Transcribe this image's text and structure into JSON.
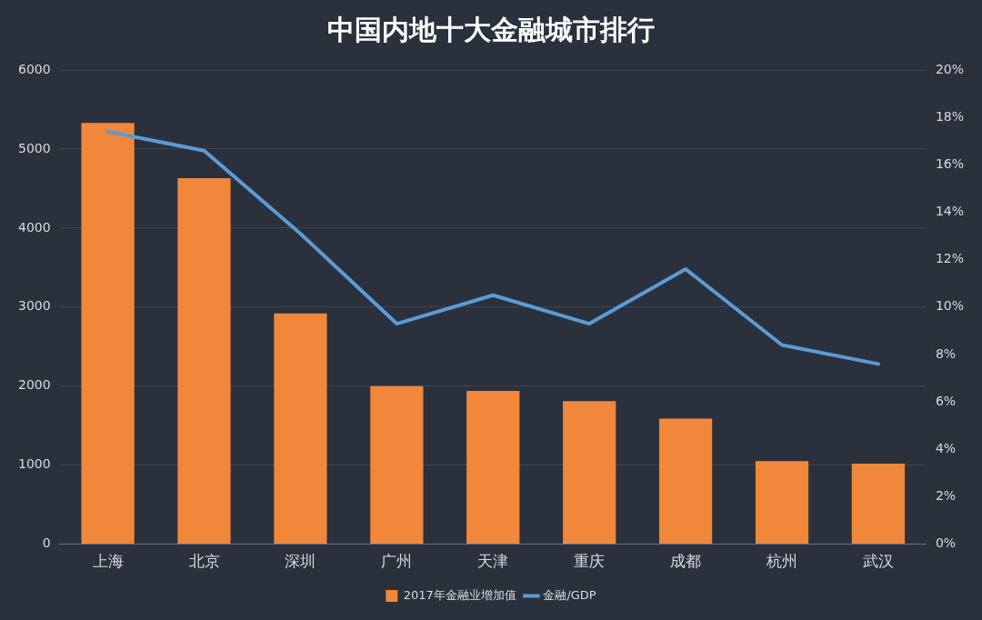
{
  "chart_data": {
    "type": "bar",
    "title": "中国内地十大金融城市排行",
    "categories": [
      "上海",
      "北京",
      "深圳",
      "广州",
      "天津",
      "重庆",
      "成都",
      "杭州",
      "武汉"
    ],
    "series": [
      {
        "name": "2017年金融业增加值",
        "color": "#f0873a",
        "values": [
          5330,
          4630,
          2920,
          2000,
          1940,
          1810,
          1590,
          1050,
          1020
        ]
      },
      {
        "name": "金融/GDP",
        "type": "line",
        "color": "#5b9bd5",
        "axis": "y2",
        "values": [
          17.4,
          16.6,
          13.1,
          9.3,
          10.5,
          9.3,
          11.6,
          8.4,
          7.6
        ]
      }
    ],
    "ylim": [
      0,
      6000
    ],
    "yticks": [
      0,
      1000,
      2000,
      3000,
      4000,
      5000,
      6000
    ],
    "y2lim": [
      0,
      20
    ],
    "y2ticks": [
      {
        "value": 0,
        "label": "0%"
      },
      {
        "value": 2,
        "label": "2%"
      },
      {
        "value": 4,
        "label": "4%"
      },
      {
        "value": 6,
        "label": "6%"
      },
      {
        "value": 8,
        "label": "8%"
      },
      {
        "value": 10,
        "label": "10%"
      },
      {
        "value": 12,
        "label": "12%"
      },
      {
        "value": 14,
        "label": "14%"
      },
      {
        "value": 16,
        "label": "16%"
      },
      {
        "value": 18,
        "label": "18%"
      },
      {
        "value": 20,
        "label": "20%"
      }
    ],
    "grid": "y",
    "legend": "bottom",
    "marker": "none",
    "line_style": "solid"
  }
}
